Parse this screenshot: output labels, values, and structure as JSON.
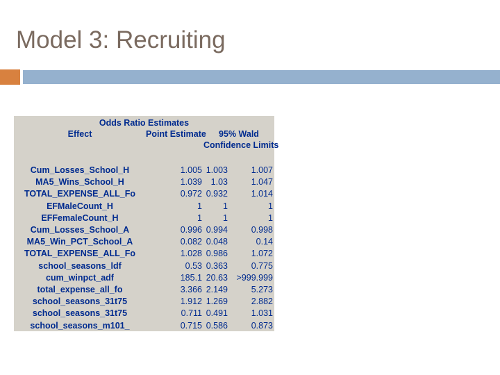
{
  "slide": {
    "title": "Model 3: Recruiting"
  },
  "table": {
    "title": "Odds Ratio Estimates",
    "headers": {
      "effect": "Effect",
      "point_estimate": "Point Estimate",
      "wald_line1": "95% Wald",
      "wald_line2": "Confidence Limits"
    },
    "rows": [
      {
        "effect": "Cum_Losses_School_H",
        "point": "1.005",
        "lower": "1.003",
        "upper": "1.007"
      },
      {
        "effect": "MA5_Wins_School_H",
        "point": "1.039",
        "lower": "1.03",
        "upper": "1.047"
      },
      {
        "effect": "TOTAL_EXPENSE_ALL_Fo",
        "point": "0.972",
        "lower": "0.932",
        "upper": "1.014"
      },
      {
        "effect": "EFMaleCount_H",
        "point": "1",
        "lower": "1",
        "upper": "1"
      },
      {
        "effect": "EFFemaleCount_H",
        "point": "1",
        "lower": "1",
        "upper": "1"
      },
      {
        "effect": "Cum_Losses_School_A",
        "point": "0.996",
        "lower": "0.994",
        "upper": "0.998"
      },
      {
        "effect": "MA5_Win_PCT_School_A",
        "point": "0.082",
        "lower": "0.048",
        "upper": "0.14"
      },
      {
        "effect": "TOTAL_EXPENSE_ALL_Fo",
        "point": "1.028",
        "lower": "0.986",
        "upper": "1.072"
      },
      {
        "effect": "school_seasons_ldf",
        "point": "0.53",
        "lower": "0.363",
        "upper": "0.775"
      },
      {
        "effect": "cum_winpct_adf",
        "point": "185.1",
        "lower": "20.63",
        "upper": ">999.999"
      },
      {
        "effect": "total_expense_all_fo",
        "point": "3.366",
        "lower": "2.149",
        "upper": "5.273"
      },
      {
        "effect": "school_seasons_31t75",
        "point": "1.912",
        "lower": "1.269",
        "upper": "2.882"
      },
      {
        "effect": "school_seasons_31t75",
        "point": "0.711",
        "lower": "0.491",
        "upper": "1.031"
      },
      {
        "effect": "school_seasons_m101_",
        "point": "0.715",
        "lower": "0.586",
        "upper": "0.873"
      }
    ]
  },
  "colors": {
    "title_text": "#7A6A5F",
    "table_bg": "#D5D2CA",
    "table_text": "#002B8F",
    "accent_orange": "#D8813F",
    "accent_blue": "#95B1CE"
  }
}
